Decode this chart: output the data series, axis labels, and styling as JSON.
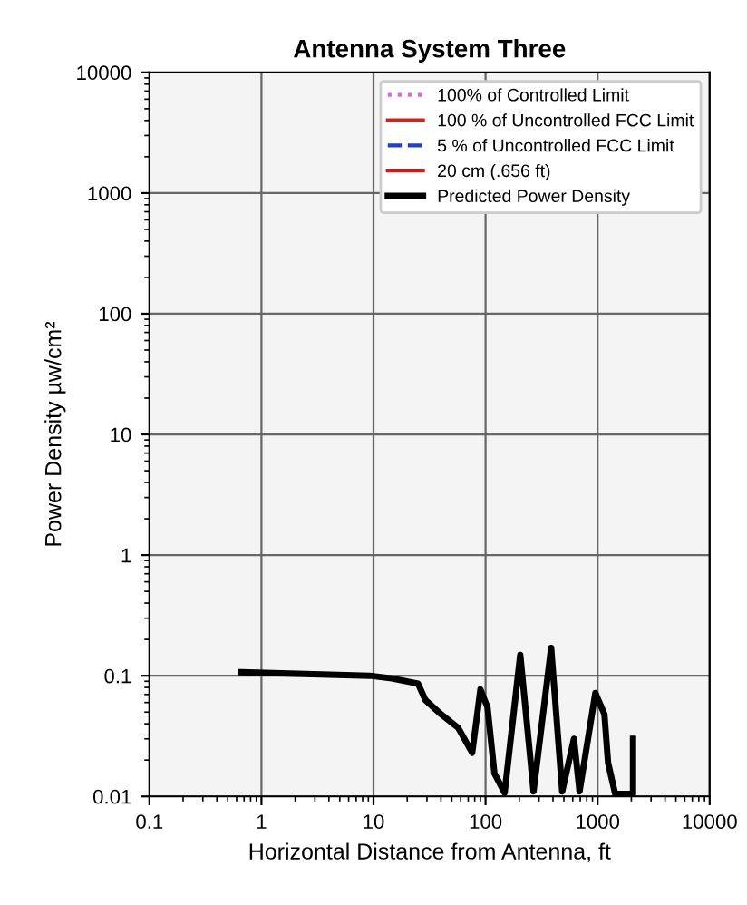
{
  "chart_data": {
    "type": "line",
    "title": "Antenna System Three",
    "xlabel": "Horizontal Distance from Antenna, ft",
    "ylabel": "Power Density µw/cm²",
    "log": "xy",
    "xlim": [
      0.1,
      10000
    ],
    "xticks": [
      0.1,
      1,
      10,
      100,
      1000,
      10000
    ],
    "ylim": [
      0.01,
      10000
    ],
    "yticks": [
      0.01,
      0.1,
      1,
      10,
      100,
      1000,
      10000
    ],
    "grid": true,
    "legend": "top right",
    "series": [
      {
        "name": "100% of Controlled Limit",
        "color": "#d070d0",
        "line_style": "dotted"
      },
      {
        "name": "100 % of Uncontrolled FCC Limit",
        "color": "#d02020",
        "line_style": "solid"
      },
      {
        "name": "5 % of Uncontrolled FCC Limit",
        "color": "#2040c0",
        "line_style": "dashed"
      },
      {
        "name": "20 cm (.656 ft)",
        "color": "#c02020",
        "line_style": "solid"
      },
      {
        "name": "Predicted Power Density",
        "color": "#000000",
        "line_style": "solid",
        "x": [
          0.66,
          9.3,
          14.6,
          25,
          29,
          40,
          57,
          76,
          90,
          104,
          120,
          148,
          204,
          268,
          385,
          483,
          615,
          690,
          955,
          1150,
          1240,
          1435,
          2070,
          2070
        ],
        "values": [
          0.107,
          0.1,
          0.095,
          0.086,
          0.063,
          0.048,
          0.037,
          0.023,
          0.077,
          0.055,
          0.0155,
          0.0107,
          0.149,
          0.011,
          0.17,
          0.011,
          0.03,
          0.011,
          0.072,
          0.048,
          0.019,
          0.0105,
          0.0105,
          0.03
        ]
      }
    ]
  }
}
